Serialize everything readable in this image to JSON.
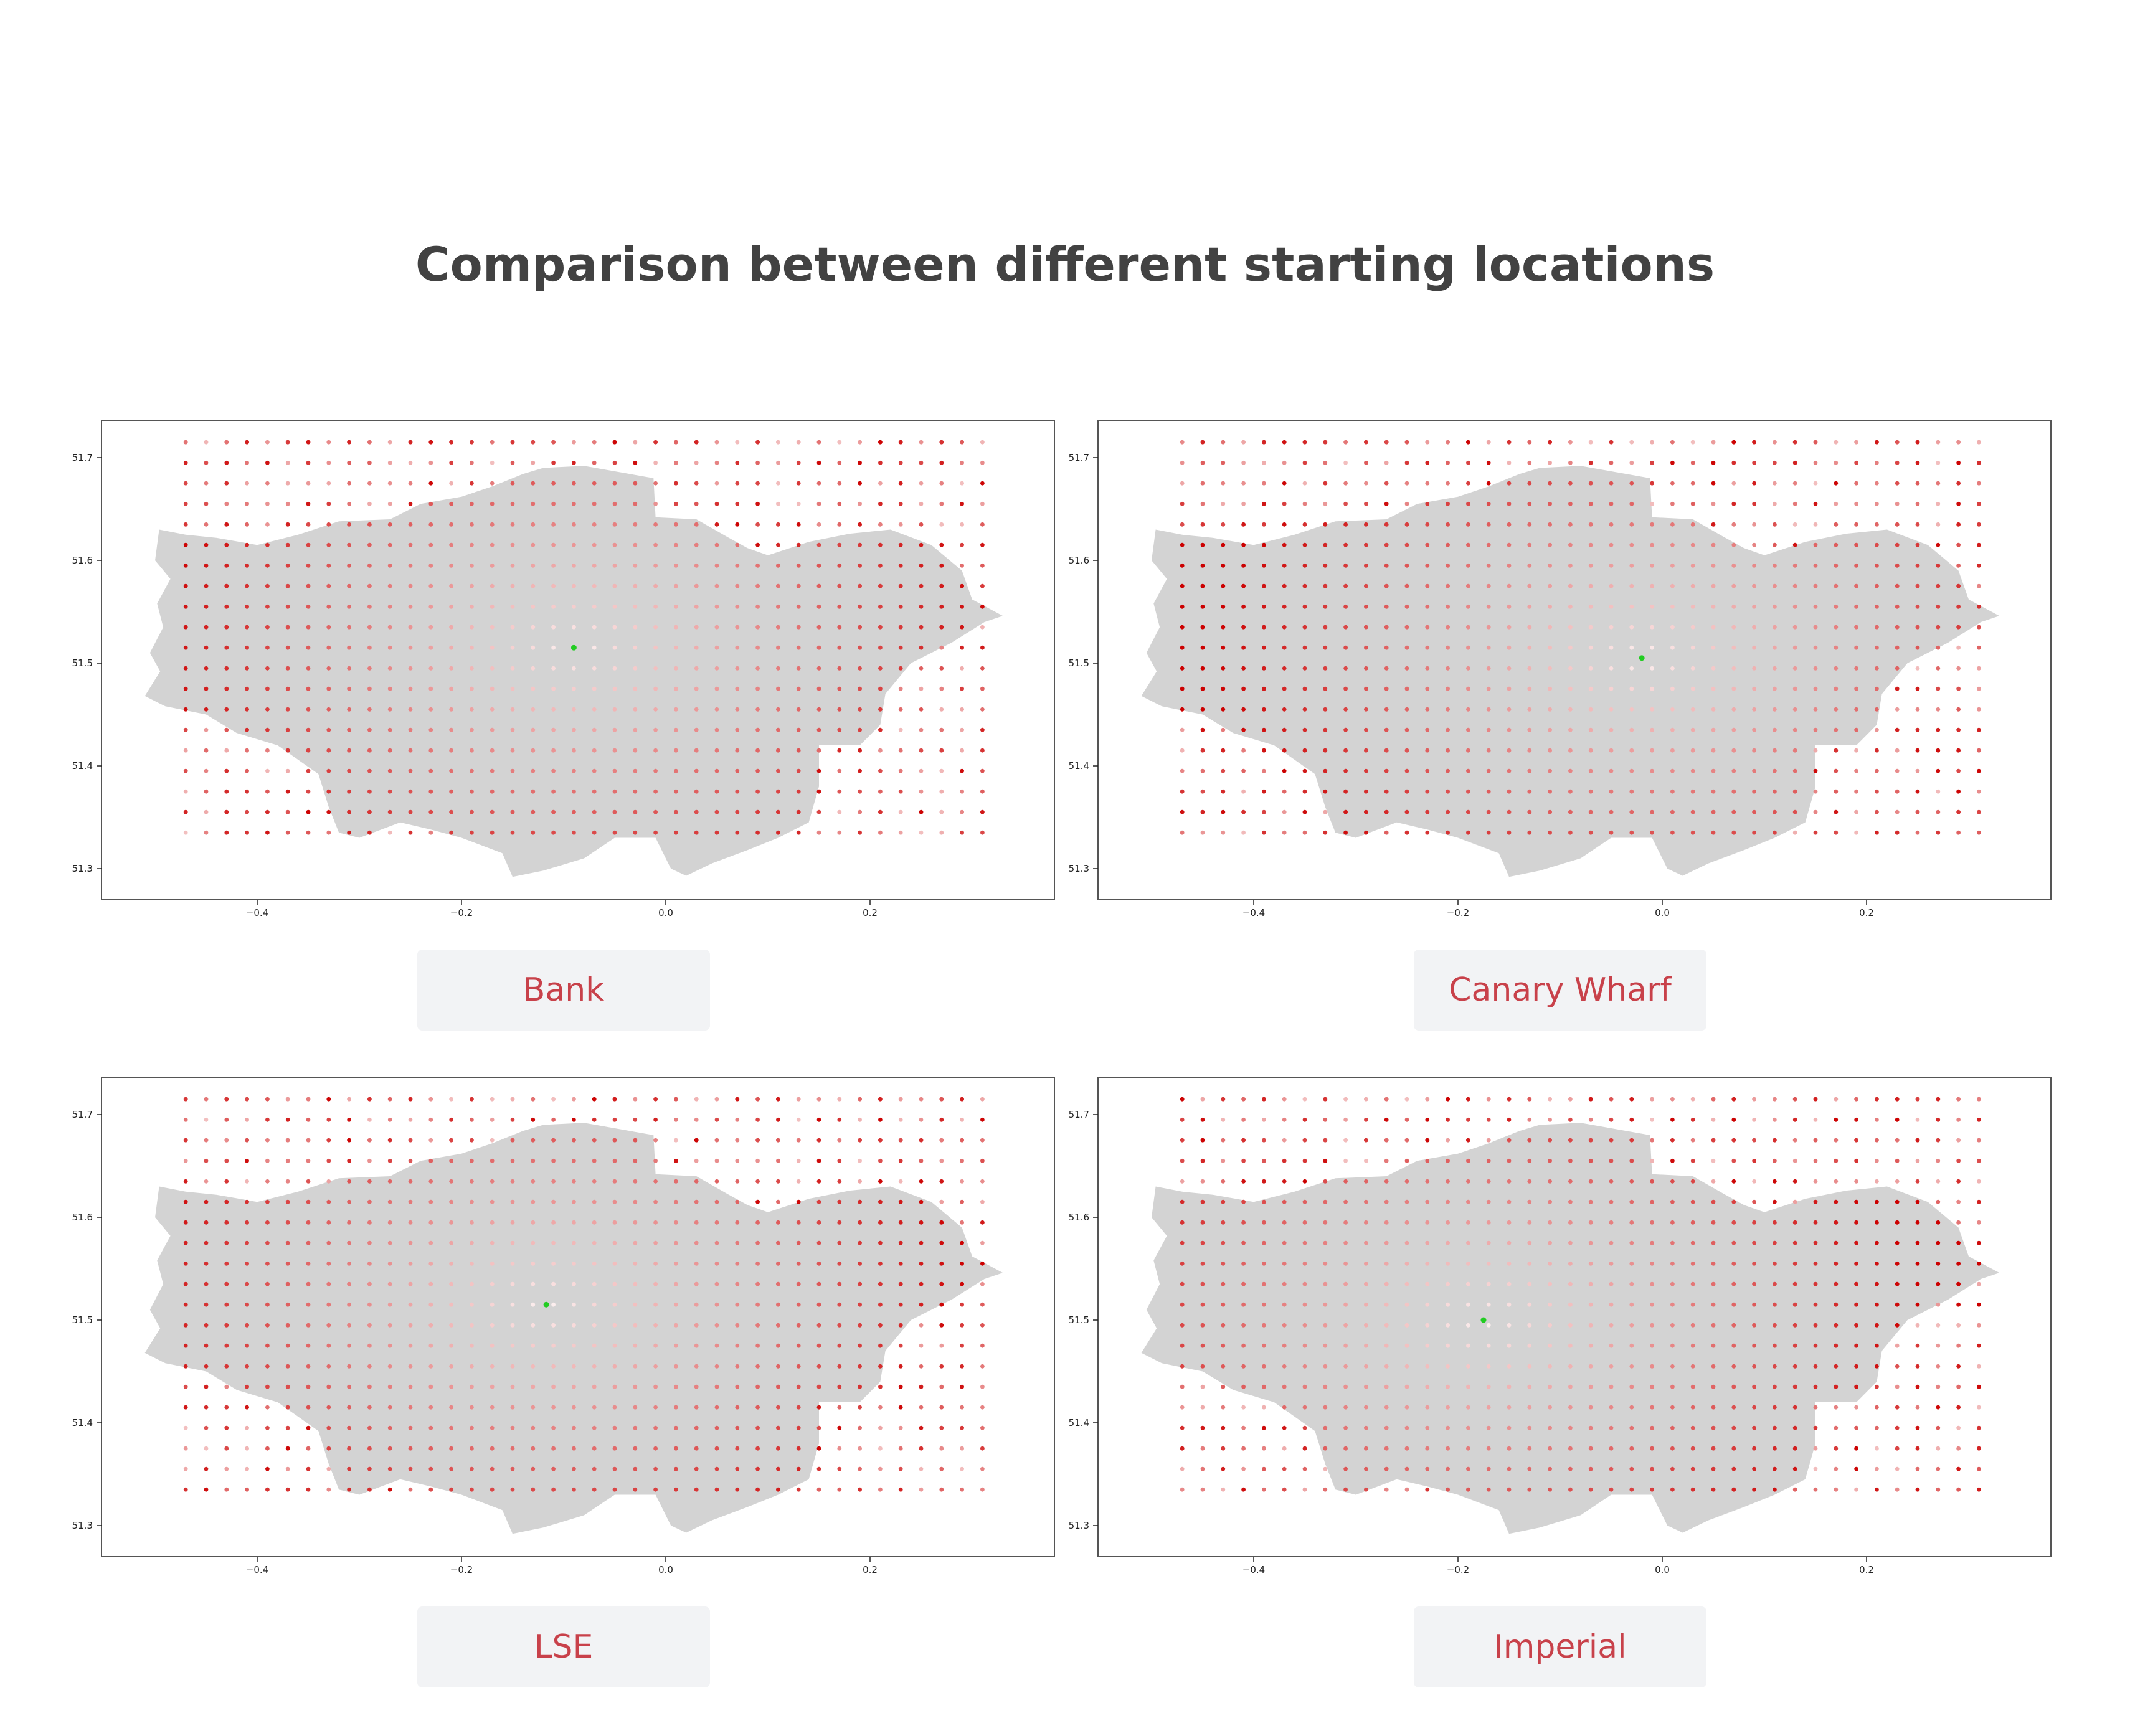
{
  "title": "Comparison between different starting locations",
  "colors": {
    "land": "#d3d3d3",
    "frame": "#555555",
    "dot_far": "#cc0000",
    "dot_near": "#ffffff",
    "origin": "#22cc22",
    "caption_text": "#c8414a",
    "caption_bg": "#f2f3f5"
  },
  "chart_data": [
    {
      "type": "scatter",
      "label": "Bank",
      "origin": {
        "lon": -0.09,
        "lat": 51.515
      },
      "xlim": [
        -0.55,
        0.38
      ],
      "ylim": [
        51.265,
        51.735
      ],
      "xticks": [
        "−0.4",
        "−0.2",
        "0.0",
        "0.2"
      ],
      "yticks": [
        "51.3",
        "51.4",
        "51.5",
        "51.6",
        "51.7"
      ],
      "grid": {
        "lon_start": -0.47,
        "lon_end": 0.31,
        "lat_start": 51.335,
        "lat_end": 51.715,
        "step_lon": 0.02,
        "step_lat": 0.02
      }
    },
    {
      "type": "scatter",
      "label": "Canary Wharf",
      "origin": {
        "lon": -0.02,
        "lat": 51.505
      },
      "xlim": [
        -0.55,
        0.38
      ],
      "ylim": [
        51.265,
        51.735
      ],
      "xticks": [
        "−0.4",
        "−0.2",
        "0.0",
        "0.2"
      ],
      "yticks": [
        "51.3",
        "51.4",
        "51.5",
        "51.6",
        "51.7"
      ],
      "grid": {
        "lon_start": -0.47,
        "lon_end": 0.31,
        "lat_start": 51.335,
        "lat_end": 51.715,
        "step_lon": 0.02,
        "step_lat": 0.02
      }
    },
    {
      "type": "scatter",
      "label": "LSE",
      "origin": {
        "lon": -0.117,
        "lat": 51.515
      },
      "xlim": [
        -0.55,
        0.38
      ],
      "ylim": [
        51.265,
        51.735
      ],
      "xticks": [
        "−0.4",
        "−0.2",
        "0.0",
        "0.2"
      ],
      "yticks": [
        "51.3",
        "51.4",
        "51.5",
        "51.6",
        "51.7"
      ],
      "grid": {
        "lon_start": -0.47,
        "lon_end": 0.31,
        "lat_start": 51.335,
        "lat_end": 51.715,
        "step_lon": 0.02,
        "step_lat": 0.02
      }
    },
    {
      "type": "scatter",
      "label": "Imperial",
      "origin": {
        "lon": -0.175,
        "lat": 51.5
      },
      "xlim": [
        -0.55,
        0.38
      ],
      "ylim": [
        51.265,
        51.735
      ],
      "xticks": [
        "−0.4",
        "−0.2",
        "0.0",
        "0.2"
      ],
      "yticks": [
        "51.3",
        "51.4",
        "51.5",
        "51.6",
        "51.7"
      ],
      "grid": {
        "lon_start": -0.47,
        "lon_end": 0.31,
        "lat_start": 51.335,
        "lat_end": 51.715,
        "step_lon": 0.02,
        "step_lat": 0.02
      }
    }
  ]
}
